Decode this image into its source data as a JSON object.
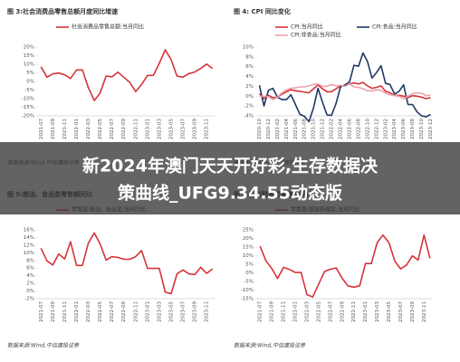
{
  "chart_data": [
    {
      "type": "line",
      "title": "图 3:社会消费品零售总额月度同比增速",
      "source": "数据来源:Wind,中信建投证券",
      "categories": [
        "2021-07",
        null,
        "2021-09",
        null,
        "2021-11",
        null,
        "2022-01",
        null,
        "2022-03",
        null,
        "2022-05",
        null,
        "2022-07",
        null,
        "2022-09",
        null,
        "2022-11",
        null,
        "2023-01",
        null,
        "2023-03",
        null,
        "2023-05",
        null,
        "2023-07",
        null,
        "2023-09",
        null,
        "2023-11",
        null
      ],
      "series": [
        {
          "name": "社会消费品零售总额:当月同比",
          "color": "#d6333a",
          "values": [
            8.5,
            2.5,
            4.4,
            4.9,
            3.9,
            1.7,
            6.7,
            6.7,
            -3.5,
            -11.1,
            -6.7,
            3.1,
            2.7,
            5.4,
            2.5,
            -0.5,
            -5.9,
            -1.8,
            3.5,
            3.5,
            10.6,
            18.4,
            12.7,
            3.1,
            2.5,
            4.6,
            5.5,
            7.6,
            10.1,
            7.4
          ]
        }
      ],
      "ylim": [
        -20,
        20
      ],
      "yticks": [
        {
          "value": 20,
          "label": "20%"
        },
        {
          "value": 15,
          "label": "15%"
        },
        {
          "value": 10,
          "label": "10%"
        },
        {
          "value": 5,
          "label": "5%"
        },
        {
          "value": 0,
          "label": "0%"
        },
        {
          "value": -5,
          "label": "-5%"
        },
        {
          "value": -10,
          "label": "-10%"
        },
        {
          "value": -15,
          "label": "-15%"
        },
        {
          "value": -20,
          "label": "-20%"
        }
      ],
      "grid": false
    },
    {
      "type": "line",
      "title": "图 4: CPI 同比变化",
      "source": "数据来源:Wind,中信建投证券",
      "categories": [
        "2020-10",
        null,
        "2020-12",
        null,
        "2021-02",
        null,
        "2021-04",
        null,
        "2021-06",
        null,
        "2021-08",
        null,
        "2021-10",
        null,
        "2021-12",
        null,
        "2022-02",
        null,
        "2022-04",
        null,
        "2022-06",
        null,
        "2022-08",
        null,
        "2022-10",
        null,
        "2022-12",
        null,
        "2023-02",
        null,
        "2023-04",
        null,
        "2023-06",
        null,
        "2023-08",
        null,
        "2023-10",
        null,
        "2023-12"
      ],
      "series": [
        {
          "name": "CPI:当月同比",
          "color": "#d6333a",
          "values": [
            0.5,
            -0.5,
            0.2,
            -0.3,
            -0.2,
            0.4,
            0.9,
            1.3,
            1.1,
            1.0,
            0.8,
            0.7,
            1.5,
            2.3,
            1.5,
            0.9,
            0.9,
            1.5,
            2.1,
            2.1,
            2.5,
            2.7,
            2.5,
            2.8,
            2.1,
            1.6,
            1.8,
            2.1,
            1.0,
            0.7,
            0.1,
            0.2,
            0.0,
            -0.3,
            0.1,
            0.0,
            -0.2,
            -0.5,
            -0.3
          ]
        },
        {
          "name": "CPI:食品:当月同比",
          "color": "#1f3864",
          "values": [
            2.2,
            -2.0,
            1.2,
            1.6,
            -0.2,
            -0.7,
            -0.7,
            0.3,
            -1.7,
            -3.7,
            -4.1,
            -5.2,
            -2.4,
            1.6,
            -1.2,
            -3.8,
            -3.9,
            -1.5,
            1.9,
            2.3,
            2.9,
            6.3,
            6.1,
            8.8,
            7.0,
            3.7,
            4.8,
            6.2,
            2.6,
            2.4,
            0.4,
            1.0,
            2.3,
            -1.7,
            -1.7,
            -3.2,
            -4.0,
            -4.2,
            -3.7
          ]
        },
        {
          "name": "CPI:非食品:当月同比",
          "color": "#eba2aa",
          "values": [
            0.0,
            0.0,
            -0.1,
            -0.7,
            -0.2,
            0.7,
            1.3,
            1.6,
            1.7,
            1.9,
            1.9,
            2.1,
            2.4,
            2.5,
            2.0,
            2.0,
            2.4,
            2.1,
            2.2,
            2.0,
            2.5,
            1.9,
            1.8,
            1.5,
            1.1,
            1.1,
            1.3,
            1.2,
            0.6,
            0.3,
            0.1,
            0.0,
            -0.5,
            0.0,
            0.5,
            0.7,
            0.6,
            0.1,
            0.2
          ]
        }
      ],
      "ylim": [
        -4,
        10
      ],
      "yticks": [
        {
          "value": 10,
          "label": "10%"
        },
        {
          "value": 8,
          "label": "8%"
        },
        {
          "value": 6,
          "label": "6%"
        },
        {
          "value": 4,
          "label": "4%"
        },
        {
          "value": 2,
          "label": "2%"
        },
        {
          "value": 0,
          "label": "0%"
        },
        {
          "value": -2,
          "label": "-2%"
        },
        {
          "value": -4,
          "label": "-4%"
        }
      ],
      "grid": false
    },
    {
      "type": "line",
      "title": "图 5:粮油、食品类零售额同比",
      "source": "数据来源:Wind,中信建投证券",
      "categories": [
        "2021-07",
        null,
        "2021-09",
        null,
        "2021-11",
        null,
        "2022-01",
        null,
        "2022-03",
        null,
        "2022-05",
        null,
        "2022-07",
        null,
        "2022-09",
        null,
        "2022-11",
        null,
        "2023-01",
        null,
        "2023-03",
        null,
        "2023-05",
        null,
        "2023-07",
        null,
        "2023-09",
        null,
        "2023-11",
        null
      ],
      "series": [
        {
          "name": "零售额:粮油、食品类:当月同比",
          "color": "#d6333a",
          "values": [
            11.2,
            7.9,
            6.8,
            9.7,
            8.4,
            12.9,
            6.7,
            6.7,
            12.5,
            15.2,
            12.3,
            8.1,
            9.0,
            8.8,
            8.3,
            8.3,
            9.0,
            10.6,
            5.9,
            5.9,
            5.9,
            -0.3,
            -0.7,
            4.5,
            5.5,
            4.5,
            4.3,
            6.2,
            4.6,
            5.8
          ]
        }
      ],
      "ylim": [
        -2,
        16
      ],
      "yticks": [
        {
          "value": 16,
          "label": "16%"
        },
        {
          "value": 14,
          "label": "14%"
        },
        {
          "value": 12,
          "label": "12%"
        },
        {
          "value": 10,
          "label": "10%"
        },
        {
          "value": 8,
          "label": "8%"
        },
        {
          "value": 6,
          "label": "6%"
        },
        {
          "value": 4,
          "label": "4%"
        },
        {
          "value": 2,
          "label": "2%"
        },
        {
          "value": 0,
          "label": "0%"
        },
        {
          "value": -2,
          "label": "-2%"
        }
      ],
      "grid": false
    },
    {
      "type": "line",
      "title": "图 6:服装鞋帽类零售额同比",
      "source": "数据来源:Wind,中信建投证券",
      "categories": [
        "2021-07",
        null,
        "2021-09",
        null,
        "2021-11",
        null,
        "2022-01",
        null,
        "2022-03",
        null,
        "2022-05",
        null,
        "2022-07",
        null,
        "2022-09",
        null,
        "2022-11",
        null,
        "2023-01",
        null,
        "2023-03",
        null,
        "2023-05",
        null,
        "2023-07",
        null,
        "2023-09",
        null,
        "2023-11",
        null
      ],
      "series": [
        {
          "name": "零售额:服装鞋帽类:当月同比",
          "color": "#d6333a",
          "values": [
            15.5,
            7.0,
            2.5,
            -3.3,
            3.2,
            2.0,
            0.2,
            0.2,
            -12.7,
            -14,
            -6.5,
            0.8,
            2.1,
            2.9,
            -3.1,
            -7.5,
            -8.3,
            -7.5,
            5.4,
            5.4,
            17.7,
            22.0,
            17.6,
            6.9,
            2.3,
            4.5,
            9.9,
            7.5,
            22.0,
            8.5
          ]
        }
      ],
      "ylim": [
        -15,
        25
      ],
      "yticks": [
        {
          "value": 25,
          "label": "25%"
        },
        {
          "value": 20,
          "label": "20%"
        },
        {
          "value": 15,
          "label": "15%"
        },
        {
          "value": 10,
          "label": "10%"
        },
        {
          "value": 5,
          "label": "5%"
        },
        {
          "value": 0,
          "label": "0%"
        },
        {
          "value": -5,
          "label": "-5%"
        },
        {
          "value": -10,
          "label": "-10%"
        },
        {
          "value": -15,
          "label": "-15%"
        }
      ],
      "grid": false
    }
  ],
  "banner": {
    "lines": [
      "新2024年澳门天天开好彩,生存数据决",
      "策曲线_UFG9.34.55动态版"
    ]
  }
}
